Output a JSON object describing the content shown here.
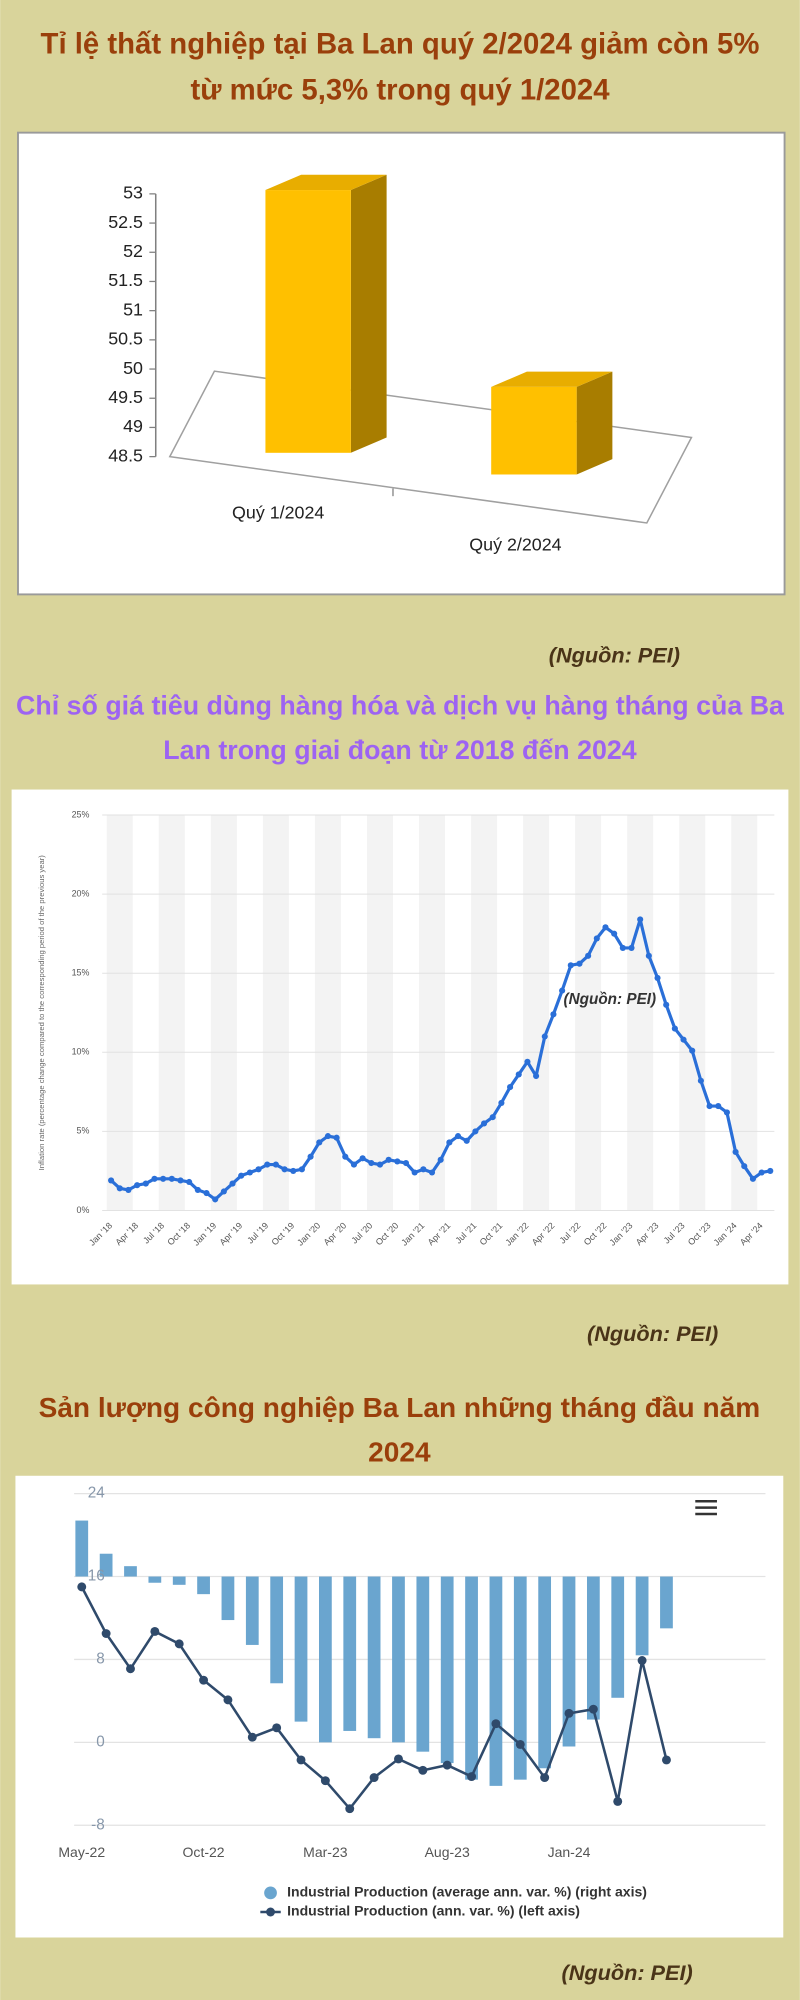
{
  "chart_data": [
    {
      "type": "bar3d",
      "title": "Tỉ lệ thất nghiệp tại Ba Lan quý 2/2024 giảm còn 5% từ mức 5,3% trong quý 1/2024",
      "categories": [
        "Quý 1/2024",
        "Quý 2/2024"
      ],
      "values": [
        53,
        50
      ],
      "color": "#ffc000",
      "ylim": [
        48.5,
        53
      ],
      "yticks": [
        48.5,
        49,
        49.5,
        50,
        50.5,
        51,
        51.5,
        52,
        52.5,
        53
      ],
      "source": "(Nguồn: PEI)"
    },
    {
      "type": "line",
      "title": "Chỉ số giá tiêu dùng hàng hóa và dịch vụ hàng tháng của Ba Lan trong giai đoạn từ 2018 đến 2024",
      "ylabel": "Inflation rate (percentage change compared to the corresponding period of the previous year)",
      "annotation": "(Nguồn: PEI)",
      "categories": [
        "Jan '18",
        null,
        null,
        "Apr '18",
        null,
        null,
        "Jul '18",
        null,
        null,
        "Oct '18",
        null,
        null,
        "Jan '19",
        null,
        null,
        "Apr '19",
        null,
        null,
        "Jul '19",
        null,
        null,
        "Oct '19",
        null,
        null,
        "Jan '20",
        null,
        null,
        "Apr '20",
        null,
        null,
        "Jul '20",
        null,
        null,
        "Oct '20",
        null,
        null,
        "Jan '21",
        null,
        null,
        "Apr '21",
        null,
        null,
        "Jul '21",
        null,
        null,
        "Oct '21",
        null,
        null,
        "Jan '22",
        null,
        null,
        "Apr '22",
        null,
        null,
        "Jul '22",
        null,
        null,
        "Oct '22",
        null,
        null,
        "Jan '23",
        null,
        null,
        "Apr '23",
        null,
        null,
        "Jul '23",
        null,
        null,
        "Oct '23",
        null,
        null,
        "Jan '24",
        null,
        null,
        "Apr '24",
        null
      ],
      "values": [
        1.9,
        1.4,
        1.3,
        1.6,
        1.7,
        2.0,
        2.0,
        2.0,
        1.9,
        1.8,
        1.3,
        1.1,
        0.7,
        1.2,
        1.7,
        2.2,
        2.4,
        2.6,
        2.9,
        2.9,
        2.6,
        2.5,
        2.6,
        3.4,
        4.3,
        4.7,
        4.6,
        3.4,
        2.9,
        3.3,
        3.0,
        2.9,
        3.2,
        3.1,
        3.0,
        2.4,
        2.6,
        2.4,
        3.2,
        4.3,
        4.7,
        4.4,
        5.0,
        5.5,
        5.9,
        6.8,
        7.8,
        8.6,
        9.4,
        8.5,
        11.0,
        12.4,
        13.9,
        15.5,
        15.6,
        16.1,
        17.2,
        17.9,
        17.5,
        16.6,
        16.6,
        18.4,
        16.1,
        14.7,
        13.0,
        11.5,
        10.8,
        10.1,
        8.2,
        6.6,
        6.6,
        6.2,
        3.7,
        2.8,
        2.0,
        2.4,
        2.5
      ],
      "color": "#2a6fd8",
      "ylim": [
        0,
        25
      ],
      "yticks": [
        {
          "value": 0,
          "label": "0%"
        },
        {
          "value": 5,
          "label": "5%"
        },
        {
          "value": 10,
          "label": "10%"
        },
        {
          "value": 15,
          "label": "15%"
        },
        {
          "value": 20,
          "label": "20%"
        },
        {
          "value": 25,
          "label": "25%"
        }
      ],
      "grid": true,
      "source": "(Nguồn: PEI)"
    },
    {
      "type": "combo",
      "title": "Sản lượng công nghiệp Ba Lan những tháng đầu năm 2024",
      "categories": [
        "May-22",
        null,
        null,
        null,
        null,
        "Oct-22",
        null,
        null,
        null,
        null,
        "Mar-23",
        null,
        null,
        null,
        null,
        "Aug-23",
        null,
        null,
        null,
        null,
        "Jan-24",
        null,
        null,
        null,
        null
      ],
      "series": [
        {
          "name": "Industrial Production (average ann. var. %) (right axis)",
          "type": "bar",
          "axis": "y2",
          "color": "#6aa5cf",
          "values": [
            5.4,
            2.2,
            1.0,
            -0.6,
            -0.8,
            -1.7,
            -4.2,
            -6.6,
            -10.3,
            -14.0,
            -16.0,
            -14.9,
            -15.6,
            -16.0,
            -16.9,
            -18.0,
            -19.6,
            -20.2,
            -19.6,
            -18.5,
            -16.4,
            -13.8,
            -11.7,
            -7.6,
            -5.0
          ]
        },
        {
          "name": "Industrial Production (ann. var. %) (left axis)",
          "type": "line",
          "color": "#2f4a6b",
          "values": [
            15.0,
            10.5,
            7.1,
            10.7,
            9.5,
            6.0,
            4.1,
            0.5,
            1.4,
            -1.7,
            -3.7,
            -6.4,
            -3.4,
            -1.6,
            -2.7,
            -2.2,
            -3.3,
            1.8,
            -0.2,
            -3.4,
            2.8,
            3.2,
            -5.7,
            7.9,
            -1.7
          ]
        }
      ],
      "ylim": [
        -8,
        24
      ],
      "yticks": [
        -8,
        0,
        8,
        16,
        24
      ],
      "y2lim": [
        -24,
        8
      ],
      "grid": true,
      "legend": "bottom",
      "source": "(Nguồn: PEI)"
    }
  ]
}
